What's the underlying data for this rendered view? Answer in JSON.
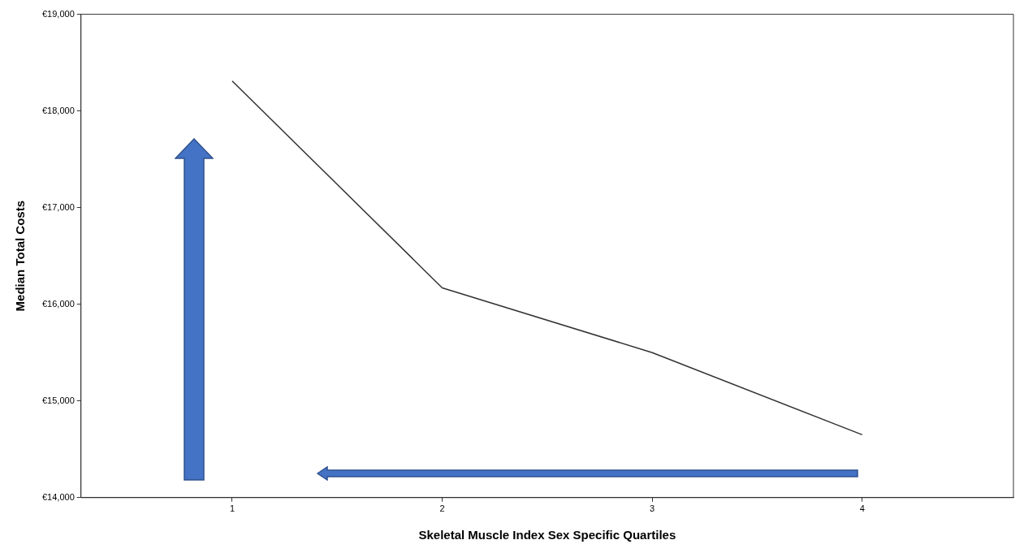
{
  "chart_data": {
    "type": "line",
    "xlabel": "Skeletal Muscle Index Sex Specific Quartiles",
    "ylabel": "Median Total Costs",
    "x": [
      1,
      2,
      3,
      4
    ],
    "series": [
      {
        "color": "#333333",
        "values": [
          18310,
          16170,
          15500,
          14650
        ]
      }
    ],
    "xlim": [
      0.28,
      4.72
    ],
    "xticks": [
      1,
      2,
      3,
      4
    ],
    "ylim": [
      14000,
      19000
    ],
    "yticks": [
      {
        "value": 14000,
        "label": "€14,000"
      },
      {
        "value": 15000,
        "label": "€15,000"
      },
      {
        "value": 16000,
        "label": "€16,000"
      },
      {
        "value": 17000,
        "label": "€17,000"
      },
      {
        "value": 18000,
        "label": "€18,000"
      },
      {
        "value": 19000,
        "label": "€19,000"
      }
    ],
    "grid": false,
    "legend": false,
    "marker": "none",
    "line_style": "solid"
  }
}
